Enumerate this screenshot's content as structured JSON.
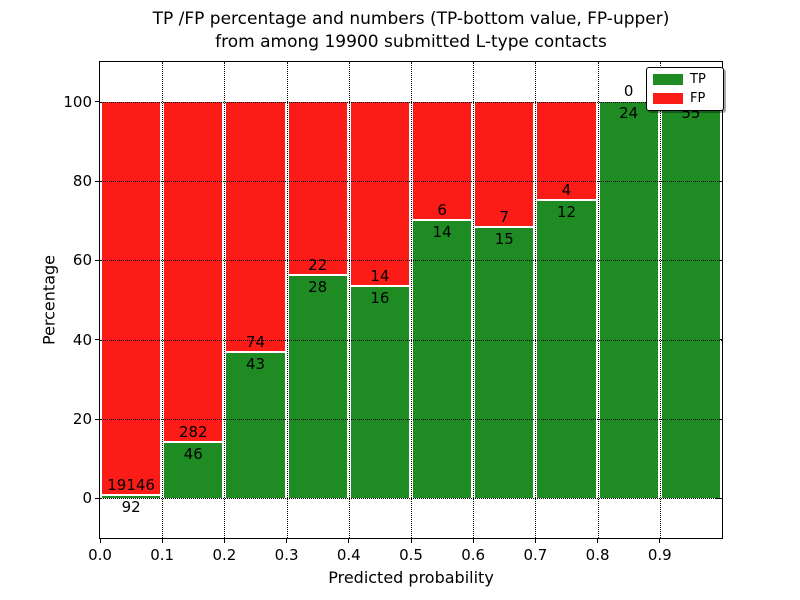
{
  "figure": {
    "title_line1": "TP /FP percentage and numbers (TP-bottom value, FP-upper)",
    "title_line2": "from among 19900 submitted L-type contacts"
  },
  "chart_data": {
    "type": "bar",
    "stacked": true,
    "title": "TP /FP percentage and numbers (TP-bottom value, FP-upper)\nfrom among 19900 submitted L-type contacts",
    "total_submitted": 19900,
    "xlabel": "Predicted probability",
    "ylabel": "Percentage",
    "xlim": [
      0.0,
      1.0
    ],
    "ylim": [
      -10,
      110
    ],
    "bin_width": 0.1,
    "bin_starts": [
      0.0,
      0.1,
      0.2,
      0.3,
      0.4,
      0.5,
      0.6,
      0.7,
      0.8,
      0.9
    ],
    "x_tick_labels": [
      "0.0",
      "0.1",
      "0.2",
      "0.3",
      "0.4",
      "0.5",
      "0.6",
      "0.7",
      "0.8",
      "0.9"
    ],
    "y_ticks": [
      0,
      20,
      40,
      60,
      80,
      100
    ],
    "y_tick_labels": [
      "0",
      "20",
      "40",
      "60",
      "80",
      "100"
    ],
    "grid": true,
    "series": [
      {
        "name": "TP",
        "color": "#1e8c22",
        "counts": [
          92,
          46,
          43,
          28,
          16,
          14,
          15,
          12,
          24,
          55
        ],
        "pct": [
          0.48,
          14.02,
          36.75,
          56.0,
          53.33,
          70.0,
          68.18,
          75.0,
          100.0,
          100.0
        ]
      },
      {
        "name": "FP",
        "color": "#fb1b17",
        "counts": [
          19146,
          282,
          74,
          22,
          14,
          6,
          7,
          4,
          0,
          0
        ],
        "pct": [
          99.52,
          85.98,
          63.25,
          44.0,
          46.67,
          30.0,
          31.82,
          25.0,
          0.0,
          0.0
        ]
      }
    ],
    "legend": {
      "position": "upper right",
      "entries": [
        "TP",
        "FP"
      ]
    }
  }
}
